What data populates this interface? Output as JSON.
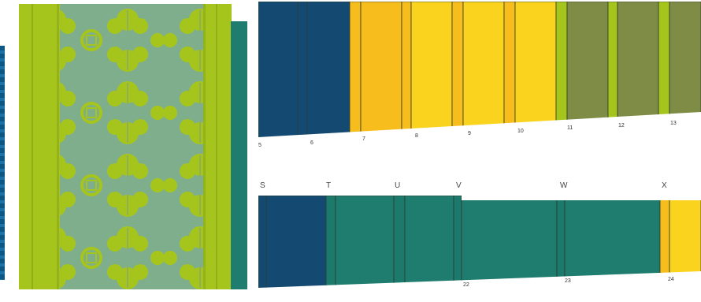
{
  "colors": {
    "navy": "#144a72",
    "amber": "#f7bd1d",
    "yellow": "#f9d31d",
    "olive": "#7f8c46",
    "lime": "#a6c51c",
    "teal": "#1f7d6f",
    "dark_teal": "#1c7a6c",
    "sage": "#7fae8c",
    "deep_blue": "#0d5784",
    "edge": "#2c3a33"
  },
  "top_strip": {
    "numbers": [
      "5",
      "6",
      "7",
      "8",
      "9",
      "10",
      "11",
      "12",
      "13"
    ]
  },
  "bottom_strip": {
    "letters": [
      "S",
      "T",
      "U",
      "V",
      "W",
      "X"
    ],
    "numbers": [
      "22",
      "23",
      "24"
    ]
  },
  "icons": {
    "textile": "floral-textile-panel-icon"
  }
}
